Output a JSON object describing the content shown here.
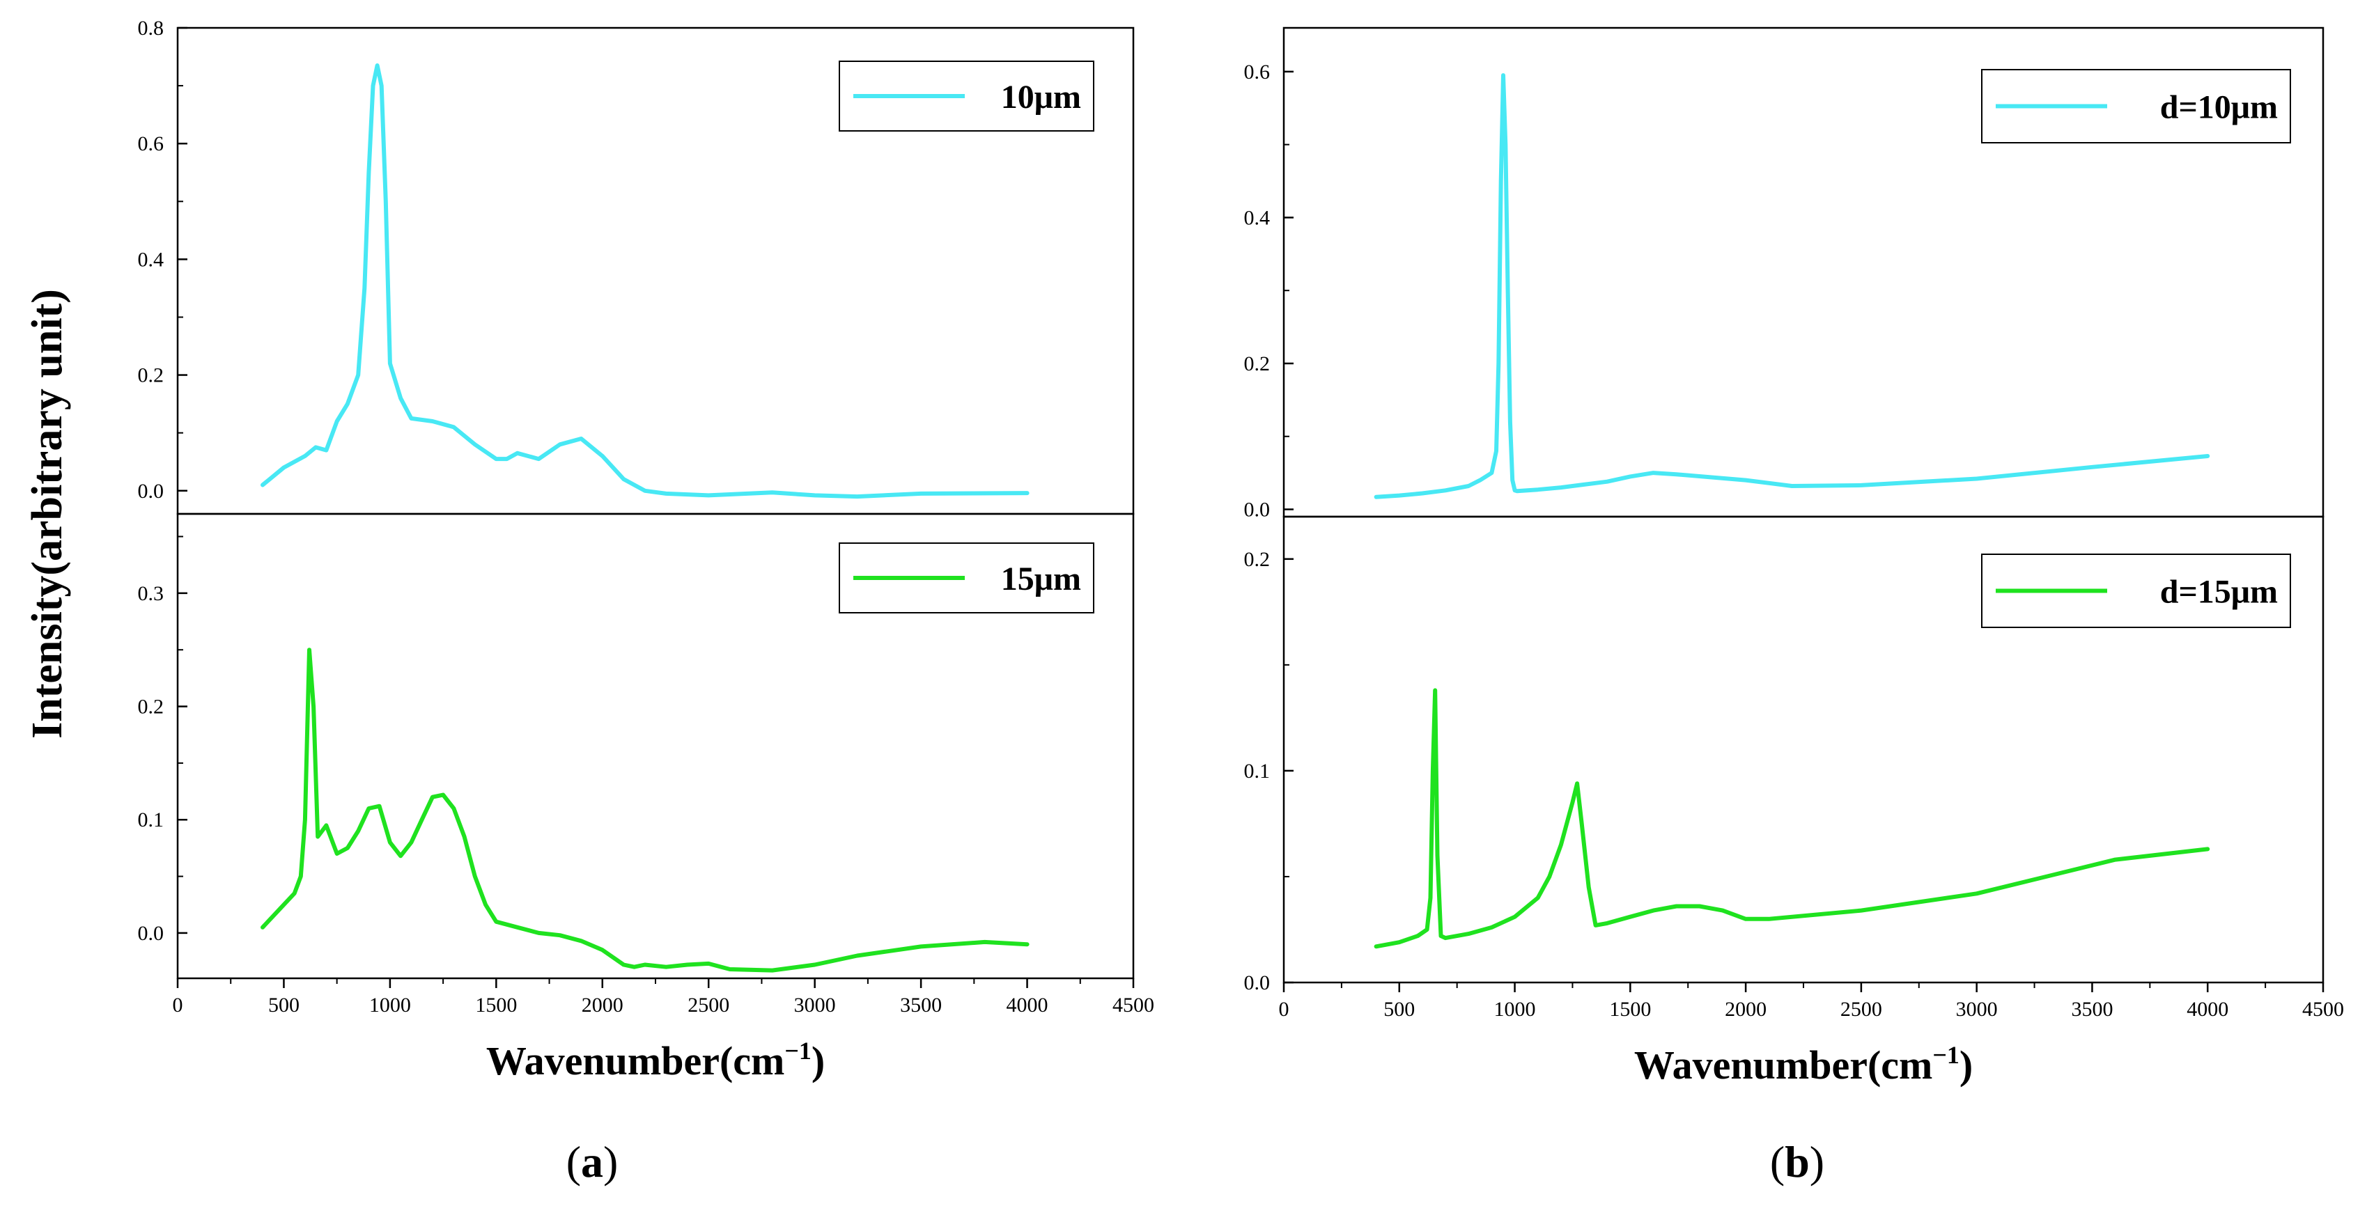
{
  "colors": {
    "cyan": "#48E8F4",
    "green": "#1FE21F",
    "axis": "#000000"
  },
  "y_axis_label": "Intensity(arbitrary unit)",
  "captions": [
    {
      "open": "(",
      "letter": "a",
      "close": ")"
    },
    {
      "open": "(",
      "letter": "b",
      "close": ")"
    }
  ],
  "chart_data": [
    {
      "id": "a-top",
      "type": "line",
      "xlim": [
        0,
        4500
      ],
      "ylim": [
        -0.04,
        0.8
      ],
      "xticks": [
        0,
        500,
        1000,
        1500,
        2000,
        2500,
        3000,
        3500,
        4000,
        4500
      ],
      "yticks": [
        0.0,
        0.2,
        0.4,
        0.6,
        0.8
      ],
      "ytick_labels": [
        "0.0",
        "0.2",
        "0.4",
        "0.6",
        "0.8"
      ],
      "show_xtick_labels": false,
      "xlabel": "",
      "legend": "10μm",
      "color": "#48E8F4",
      "x": [
        400,
        500,
        600,
        650,
        700,
        750,
        800,
        850,
        880,
        900,
        920,
        940,
        960,
        980,
        1000,
        1050,
        1100,
        1200,
        1300,
        1400,
        1500,
        1550,
        1600,
        1700,
        1800,
        1900,
        2000,
        2100,
        2200,
        2300,
        2500,
        2800,
        3000,
        3200,
        3500,
        4000
      ],
      "y": [
        0.01,
        0.04,
        0.06,
        0.075,
        0.07,
        0.12,
        0.15,
        0.2,
        0.35,
        0.55,
        0.7,
        0.735,
        0.7,
        0.5,
        0.22,
        0.16,
        0.125,
        0.12,
        0.11,
        0.08,
        0.055,
        0.055,
        0.065,
        0.055,
        0.08,
        0.09,
        0.06,
        0.02,
        0.0,
        -0.005,
        -0.008,
        -0.003,
        -0.008,
        -0.01,
        -0.005,
        -0.004
      ]
    },
    {
      "id": "a-bottom",
      "type": "line",
      "xlim": [
        0,
        4500
      ],
      "ylim": [
        -0.04,
        0.37
      ],
      "xticks": [
        0,
        500,
        1000,
        1500,
        2000,
        2500,
        3000,
        3500,
        4000,
        4500
      ],
      "yticks": [
        0.0,
        0.1,
        0.2,
        0.3
      ],
      "ytick_labels": [
        "0.0",
        "0.1",
        "0.2",
        "0.3"
      ],
      "show_xtick_labels": true,
      "xlabel": "Wavenumber(cm",
      "xlabel_sup": "−1",
      "xlabel_end": ")",
      "legend": "15μm",
      "color": "#1FE21F",
      "x": [
        400,
        500,
        550,
        580,
        600,
        620,
        640,
        660,
        680,
        700,
        720,
        750,
        800,
        850,
        900,
        950,
        1000,
        1050,
        1100,
        1150,
        1200,
        1250,
        1300,
        1350,
        1400,
        1450,
        1500,
        1600,
        1700,
        1800,
        1900,
        2000,
        2100,
        2150,
        2200,
        2300,
        2400,
        2500,
        2600,
        2800,
        3000,
        3200,
        3500,
        3800,
        4000
      ],
      "y": [
        0.005,
        0.025,
        0.035,
        0.05,
        0.1,
        0.25,
        0.2,
        0.085,
        0.09,
        0.095,
        0.085,
        0.07,
        0.075,
        0.09,
        0.11,
        0.112,
        0.08,
        0.068,
        0.08,
        0.1,
        0.12,
        0.122,
        0.11,
        0.085,
        0.05,
        0.025,
        0.01,
        0.005,
        0.0,
        -0.002,
        -0.007,
        -0.015,
        -0.028,
        -0.03,
        -0.028,
        -0.03,
        -0.028,
        -0.027,
        -0.032,
        -0.033,
        -0.028,
        -0.02,
        -0.012,
        -0.008,
        -0.01
      ]
    },
    {
      "id": "b-top",
      "type": "line",
      "xlim": [
        0,
        4500
      ],
      "ylim": [
        -0.01,
        0.66
      ],
      "xticks": [
        0,
        500,
        1000,
        1500,
        2000,
        2500,
        3000,
        3500,
        4000,
        4500
      ],
      "yticks": [
        0.0,
        0.2,
        0.4,
        0.6
      ],
      "ytick_labels": [
        "0.0",
        "0.2",
        "0.4",
        "0.6"
      ],
      "show_xtick_labels": false,
      "xlabel": "",
      "legend": "d=10μm",
      "color": "#48E8F4",
      "x": [
        400,
        500,
        600,
        700,
        800,
        850,
        900,
        920,
        930,
        940,
        950,
        960,
        970,
        980,
        990,
        1000,
        1010,
        1100,
        1200,
        1300,
        1400,
        1500,
        1600,
        1700,
        2000,
        2200,
        2500,
        3000,
        3500,
        4000
      ],
      "y": [
        0.017,
        0.019,
        0.022,
        0.026,
        0.032,
        0.04,
        0.05,
        0.08,
        0.2,
        0.45,
        0.595,
        0.5,
        0.3,
        0.12,
        0.04,
        0.026,
        0.025,
        0.027,
        0.03,
        0.034,
        0.038,
        0.045,
        0.05,
        0.048,
        0.04,
        0.032,
        0.033,
        0.042,
        0.058,
        0.073
      ]
    },
    {
      "id": "b-bottom",
      "type": "line",
      "xlim": [
        0,
        4500
      ],
      "ylim": [
        0.0,
        0.22
      ],
      "xticks": [
        0,
        500,
        1000,
        1500,
        2000,
        2500,
        3000,
        3500,
        4000,
        4500
      ],
      "yticks": [
        0.0,
        0.1,
        0.2
      ],
      "ytick_labels": [
        "0.0",
        "0.1",
        "0.2"
      ],
      "show_xtick_labels": true,
      "xlabel": "Wavenumber(cm",
      "xlabel_sup": "−1",
      "xlabel_end": ")",
      "legend": "d=15μm",
      "color": "#1FE21F",
      "x": [
        400,
        500,
        580,
        620,
        635,
        645,
        655,
        665,
        680,
        700,
        800,
        900,
        1000,
        1100,
        1150,
        1200,
        1250,
        1270,
        1290,
        1320,
        1350,
        1400,
        1500,
        1600,
        1700,
        1800,
        1900,
        2000,
        2100,
        2500,
        3000,
        3300,
        3600,
        4000
      ],
      "y": [
        0.017,
        0.019,
        0.022,
        0.025,
        0.04,
        0.1,
        0.138,
        0.06,
        0.022,
        0.021,
        0.023,
        0.026,
        0.031,
        0.04,
        0.05,
        0.065,
        0.085,
        0.094,
        0.075,
        0.045,
        0.027,
        0.028,
        0.031,
        0.034,
        0.036,
        0.036,
        0.034,
        0.03,
        0.03,
        0.034,
        0.042,
        0.05,
        0.058,
        0.063
      ]
    }
  ]
}
